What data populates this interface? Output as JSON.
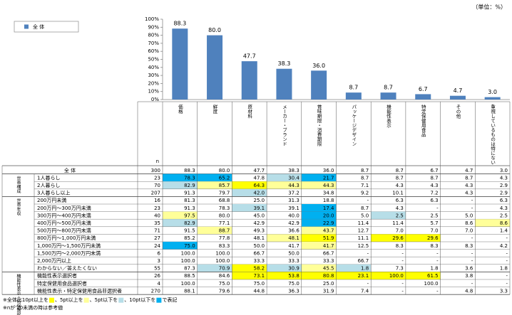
{
  "unit": "（単位：%）",
  "chart_data": {
    "type": "bar",
    "categories": [
      "価格",
      "鮮度",
      "原材料",
      "メーカー・ブランド",
      "賞味期限・消費期限",
      "パッケージデザイン",
      "機能性表示",
      "特定保健用食品",
      "その他",
      "重視しているものは特にない"
    ],
    "series": [
      {
        "name": "全 体",
        "color": "#4f81bd",
        "values": [
          88.3,
          80,
          47.7,
          38.3,
          36,
          8.7,
          8.7,
          6.7,
          4.7,
          3
        ],
        "value_labels": [
          "88.3",
          "80.0",
          "47.7",
          "38.3",
          "36.0",
          "8.7",
          "8.7",
          "6.7",
          "4.7",
          "3.0"
        ]
      }
    ],
    "ylim": [
      0,
      100
    ],
    "yticks": [
      {
        "value": 0,
        "label": "0%"
      },
      {
        "value": 10,
        "label": "10%"
      },
      {
        "value": 20,
        "label": "20%"
      },
      {
        "value": 30,
        "label": "30%"
      },
      {
        "value": 40,
        "label": "40%"
      },
      {
        "value": 50,
        "label": "50%"
      },
      {
        "value": 60,
        "label": "60%"
      },
      {
        "value": 70,
        "label": "70%"
      },
      {
        "value": 80,
        "label": "80%"
      },
      {
        "value": 90,
        "label": "90%"
      },
      {
        "value": 100,
        "label": "100%"
      }
    ]
  },
  "table": {
    "n_header": "n",
    "total_label": "全 体",
    "total": [
      "300",
      "88.3",
      "80.0",
      "47.7",
      "38.3",
      "36.0",
      "8.7",
      "8.7",
      "6.7",
      "4.7",
      "3.0"
    ],
    "groups": [
      {
        "label": "世帯構成",
        "rows": [
          {
            "label": "1人暮らし",
            "cells": [
              "23",
              "78.3",
              "65.2",
              "47.8",
              "30.4",
              "21.7",
              "8.7",
              "8.7",
              "8.7",
              "8.7",
              "4.3"
            ]
          },
          {
            "label": "2人暮らし",
            "cells": [
              "70",
              "82.9",
              "85.7",
              "64.3",
              "44.3",
              "44.3",
              "7.1",
              "4.3",
              "4.3",
              "4.3",
              "2.9"
            ]
          },
          {
            "label": "3人暮らし以上",
            "cells": [
              "207",
              "91.3",
              "79.7",
              "42.0",
              "37.2",
              "34.8",
              "9.2",
              "10.1",
              "7.2",
              "4.3",
              "2.9"
            ]
          }
        ]
      },
      {
        "label": "世帯年収",
        "rows": [
          {
            "label": "200万円未満",
            "cells": [
              "16",
              "81.3",
              "68.8",
              "25.0",
              "31.3",
              "18.8",
              "-",
              "6.3",
              "6.3",
              "-",
              "6.3"
            ]
          },
          {
            "label": "200万円～300万円未満",
            "cells": [
              "23",
              "91.3",
              "78.3",
              "39.1",
              "39.1",
              "17.4",
              "8.7",
              "4.3",
              "-",
              "-",
              "4.3"
            ]
          },
          {
            "label": "300万円～400万円未満",
            "cells": [
              "40",
              "97.5",
              "80.0",
              "45.0",
              "40.0",
              "20.0",
              "5.0",
              "2.5",
              "2.5",
              "5.0",
              "2.5"
            ]
          },
          {
            "label": "400万円～500万円未満",
            "cells": [
              "35",
              "82.9",
              "77.1",
              "42.9",
              "42.9",
              "22.9",
              "11.4",
              "11.4",
              "5.7",
              "8.6",
              "8.6"
            ]
          },
          {
            "label": "500万円～800万円未満",
            "cells": [
              "71",
              "91.5",
              "88.7",
              "49.3",
              "36.6",
              "43.7",
              "12.7",
              "7.0",
              "7.0",
              "7.0",
              "1.4"
            ]
          },
          {
            "label": "800万円～1,000万円未満",
            "cells": [
              "27",
              "85.2",
              "77.8",
              "48.1",
              "48.1",
              "51.9",
              "11.1",
              "29.6",
              "29.6",
              "-",
              "-"
            ]
          },
          {
            "label": "1,000万円～1,500万円未満",
            "cells": [
              "24",
              "75.0",
              "83.3",
              "50.0",
              "41.7",
              "41.7",
              "12.5",
              "8.3",
              "8.3",
              "8.3",
              "4.2"
            ]
          },
          {
            "label": "1,500万円～2,000万円未満",
            "cells": [
              "6",
              "100.0",
              "100.0",
              "66.7",
              "50.0",
              "66.7",
              "-",
              "-",
              "-",
              "-",
              "-"
            ]
          },
          {
            "label": "2,000万円以上",
            "cells": [
              "3",
              "100.0",
              "100.0",
              "33.3",
              "33.3",
              "33.3",
              "66.7",
              "-",
              "-",
              "-",
              "-"
            ]
          },
          {
            "label": "わからない／答えたくない",
            "cells": [
              "55",
              "87.3",
              "70.9",
              "58.2",
              "30.9",
              "45.5",
              "1.8",
              "7.3",
              "1.8",
              "3.6",
              "1.8"
            ]
          }
        ]
      },
      {
        "label": "機能性表示・特保選択",
        "rows": [
          {
            "label": "機能性表示選択者",
            "cells": [
              "26",
              "88.5",
              "84.6",
              "73.1",
              "53.8",
              "80.8",
              "23.1",
              "100.0",
              "61.5",
              "3.8",
              "-"
            ]
          },
          {
            "label": "特定保健用食品選択者",
            "cells": [
              "4",
              "100.0",
              "75.0",
              "75.0",
              "75.0",
              "25.0",
              "-",
              "-",
              "100.0",
              "-",
              "-"
            ]
          },
          {
            "label": "機能性表示・特定保健用食品非選択者",
            "cells": [
              "270",
              "88.1",
              "79.6",
              "44.8",
              "36.3",
              "31.9",
              "7.4",
              "-",
              "-",
              "4.8",
              "3.3"
            ]
          }
        ]
      }
    ],
    "min_n": 20,
    "highlight": [
      {
        "below": -10,
        "color": "#00b0f0"
      },
      {
        "above": 10,
        "color": "#ffff00"
      },
      {
        "below": -5,
        "color": "#b7dee8"
      },
      {
        "above": 5,
        "color": "#ffff99"
      }
    ]
  },
  "notes": {
    "highlight_parts": [
      "※全体比10pt以上を",
      "、5pt以上を",
      "、5pt以下を",
      "、10pt以下を",
      "で表記"
    ],
    "small_n": "※nが'20未満の時は参考値"
  }
}
